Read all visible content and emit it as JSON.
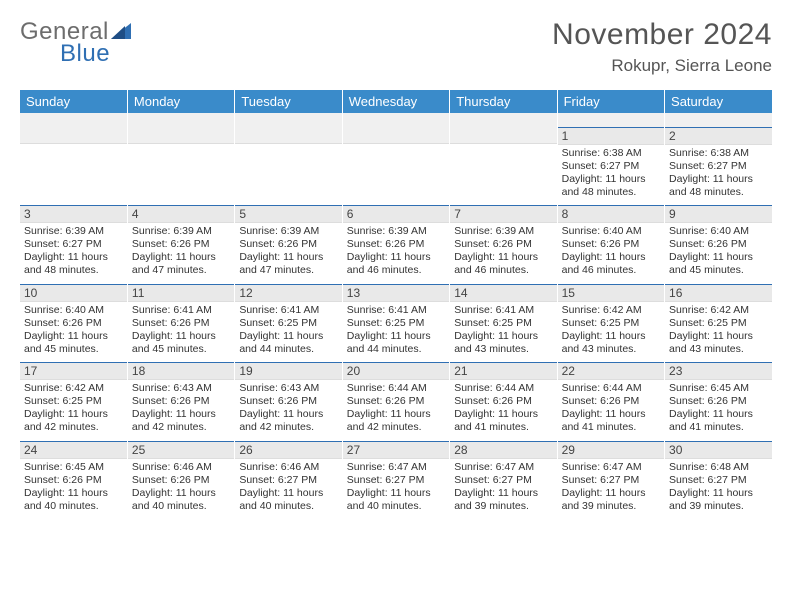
{
  "logo": {
    "word1": "General",
    "word2": "Blue"
  },
  "title": "November 2024",
  "location": "Rokupr, Sierra Leone",
  "colors": {
    "header_bg": "#3a8bca",
    "header_text": "#ffffff",
    "daynum_bg": "#e9e9e9",
    "row_border": "#2f6fb3",
    "body_text": "#333333"
  },
  "day_headers": [
    "Sunday",
    "Monday",
    "Tuesday",
    "Wednesday",
    "Thursday",
    "Friday",
    "Saturday"
  ],
  "weeks": [
    [
      null,
      null,
      null,
      null,
      null,
      {
        "n": "1",
        "sunrise": "Sunrise: 6:38 AM",
        "sunset": "Sunset: 6:27 PM",
        "daylight": "Daylight: 11 hours and 48 minutes."
      },
      {
        "n": "2",
        "sunrise": "Sunrise: 6:38 AM",
        "sunset": "Sunset: 6:27 PM",
        "daylight": "Daylight: 11 hours and 48 minutes."
      }
    ],
    [
      {
        "n": "3",
        "sunrise": "Sunrise: 6:39 AM",
        "sunset": "Sunset: 6:27 PM",
        "daylight": "Daylight: 11 hours and 48 minutes."
      },
      {
        "n": "4",
        "sunrise": "Sunrise: 6:39 AM",
        "sunset": "Sunset: 6:26 PM",
        "daylight": "Daylight: 11 hours and 47 minutes."
      },
      {
        "n": "5",
        "sunrise": "Sunrise: 6:39 AM",
        "sunset": "Sunset: 6:26 PM",
        "daylight": "Daylight: 11 hours and 47 minutes."
      },
      {
        "n": "6",
        "sunrise": "Sunrise: 6:39 AM",
        "sunset": "Sunset: 6:26 PM",
        "daylight": "Daylight: 11 hours and 46 minutes."
      },
      {
        "n": "7",
        "sunrise": "Sunrise: 6:39 AM",
        "sunset": "Sunset: 6:26 PM",
        "daylight": "Daylight: 11 hours and 46 minutes."
      },
      {
        "n": "8",
        "sunrise": "Sunrise: 6:40 AM",
        "sunset": "Sunset: 6:26 PM",
        "daylight": "Daylight: 11 hours and 46 minutes."
      },
      {
        "n": "9",
        "sunrise": "Sunrise: 6:40 AM",
        "sunset": "Sunset: 6:26 PM",
        "daylight": "Daylight: 11 hours and 45 minutes."
      }
    ],
    [
      {
        "n": "10",
        "sunrise": "Sunrise: 6:40 AM",
        "sunset": "Sunset: 6:26 PM",
        "daylight": "Daylight: 11 hours and 45 minutes."
      },
      {
        "n": "11",
        "sunrise": "Sunrise: 6:41 AM",
        "sunset": "Sunset: 6:26 PM",
        "daylight": "Daylight: 11 hours and 45 minutes."
      },
      {
        "n": "12",
        "sunrise": "Sunrise: 6:41 AM",
        "sunset": "Sunset: 6:25 PM",
        "daylight": "Daylight: 11 hours and 44 minutes."
      },
      {
        "n": "13",
        "sunrise": "Sunrise: 6:41 AM",
        "sunset": "Sunset: 6:25 PM",
        "daylight": "Daylight: 11 hours and 44 minutes."
      },
      {
        "n": "14",
        "sunrise": "Sunrise: 6:41 AM",
        "sunset": "Sunset: 6:25 PM",
        "daylight": "Daylight: 11 hours and 43 minutes."
      },
      {
        "n": "15",
        "sunrise": "Sunrise: 6:42 AM",
        "sunset": "Sunset: 6:25 PM",
        "daylight": "Daylight: 11 hours and 43 minutes."
      },
      {
        "n": "16",
        "sunrise": "Sunrise: 6:42 AM",
        "sunset": "Sunset: 6:25 PM",
        "daylight": "Daylight: 11 hours and 43 minutes."
      }
    ],
    [
      {
        "n": "17",
        "sunrise": "Sunrise: 6:42 AM",
        "sunset": "Sunset: 6:25 PM",
        "daylight": "Daylight: 11 hours and 42 minutes."
      },
      {
        "n": "18",
        "sunrise": "Sunrise: 6:43 AM",
        "sunset": "Sunset: 6:26 PM",
        "daylight": "Daylight: 11 hours and 42 minutes."
      },
      {
        "n": "19",
        "sunrise": "Sunrise: 6:43 AM",
        "sunset": "Sunset: 6:26 PM",
        "daylight": "Daylight: 11 hours and 42 minutes."
      },
      {
        "n": "20",
        "sunrise": "Sunrise: 6:44 AM",
        "sunset": "Sunset: 6:26 PM",
        "daylight": "Daylight: 11 hours and 42 minutes."
      },
      {
        "n": "21",
        "sunrise": "Sunrise: 6:44 AM",
        "sunset": "Sunset: 6:26 PM",
        "daylight": "Daylight: 11 hours and 41 minutes."
      },
      {
        "n": "22",
        "sunrise": "Sunrise: 6:44 AM",
        "sunset": "Sunset: 6:26 PM",
        "daylight": "Daylight: 11 hours and 41 minutes."
      },
      {
        "n": "23",
        "sunrise": "Sunrise: 6:45 AM",
        "sunset": "Sunset: 6:26 PM",
        "daylight": "Daylight: 11 hours and 41 minutes."
      }
    ],
    [
      {
        "n": "24",
        "sunrise": "Sunrise: 6:45 AM",
        "sunset": "Sunset: 6:26 PM",
        "daylight": "Daylight: 11 hours and 40 minutes."
      },
      {
        "n": "25",
        "sunrise": "Sunrise: 6:46 AM",
        "sunset": "Sunset: 6:26 PM",
        "daylight": "Daylight: 11 hours and 40 minutes."
      },
      {
        "n": "26",
        "sunrise": "Sunrise: 6:46 AM",
        "sunset": "Sunset: 6:27 PM",
        "daylight": "Daylight: 11 hours and 40 minutes."
      },
      {
        "n": "27",
        "sunrise": "Sunrise: 6:47 AM",
        "sunset": "Sunset: 6:27 PM",
        "daylight": "Daylight: 11 hours and 40 minutes."
      },
      {
        "n": "28",
        "sunrise": "Sunrise: 6:47 AM",
        "sunset": "Sunset: 6:27 PM",
        "daylight": "Daylight: 11 hours and 39 minutes."
      },
      {
        "n": "29",
        "sunrise": "Sunrise: 6:47 AM",
        "sunset": "Sunset: 6:27 PM",
        "daylight": "Daylight: 11 hours and 39 minutes."
      },
      {
        "n": "30",
        "sunrise": "Sunrise: 6:48 AM",
        "sunset": "Sunset: 6:27 PM",
        "daylight": "Daylight: 11 hours and 39 minutes."
      }
    ]
  ]
}
